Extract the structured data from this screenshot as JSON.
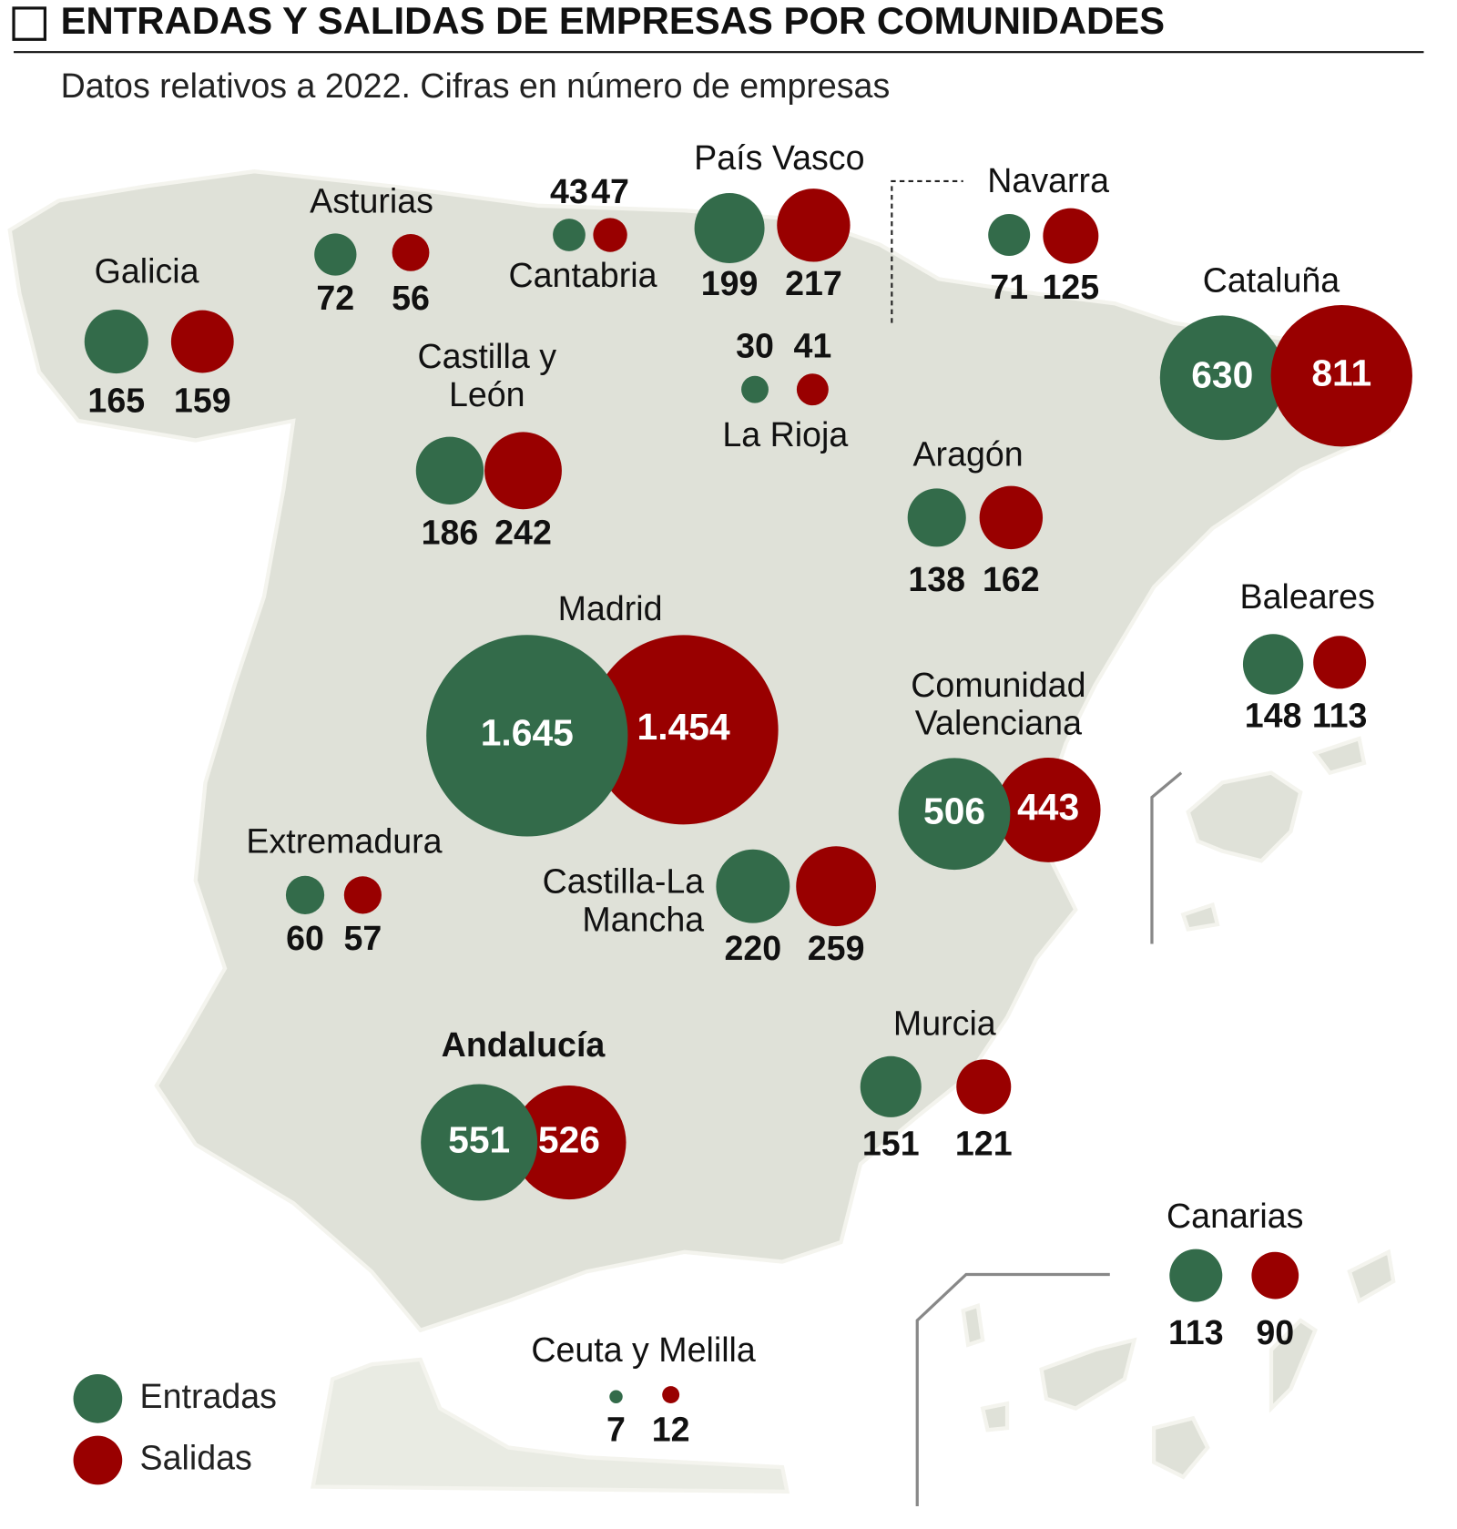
{
  "chart_data": {
    "type": "bubble-map",
    "title": "ENTRADAS Y SALIDAS DE EMPRESAS POR COMUNIDADES",
    "subtitle": "Datos relativos a 2022. Cifras en número de empresas",
    "categories": [
      "Galicia",
      "Asturias",
      "Cantabria",
      "País Vasco",
      "Navarra",
      "La Rioja",
      "Castilla y León",
      "Aragón",
      "Cataluña",
      "Baleares",
      "Madrid",
      "Comunidad Valenciana",
      "Extremadura",
      "Castilla-La Mancha",
      "Murcia",
      "Andalucía",
      "Canarias",
      "Ceuta y Melilla"
    ],
    "series": [
      {
        "name": "Entradas",
        "color": "#336b4a",
        "values": [
          165,
          72,
          43,
          199,
          71,
          30,
          186,
          138,
          630,
          148,
          1645,
          506,
          60,
          220,
          151,
          551,
          113,
          7
        ],
        "value_labels": [
          "165",
          "72",
          "43",
          "199",
          "71",
          "30",
          "186",
          "138",
          "630",
          "148",
          "1.645",
          "506",
          "60",
          "220",
          "151",
          "551",
          "113",
          "7"
        ]
      },
      {
        "name": "Salidas",
        "color": "#990000",
        "values": [
          159,
          56,
          47,
          217,
          125,
          41,
          242,
          162,
          811,
          113,
          1454,
          443,
          57,
          259,
          121,
          526,
          90,
          12
        ],
        "value_labels": [
          "159",
          "56",
          "47",
          "217",
          "125",
          "41",
          "242",
          "162",
          "811",
          "113",
          "1.454",
          "443",
          "57",
          "259",
          "121",
          "526",
          "90",
          "12"
        ]
      }
    ]
  }
}
